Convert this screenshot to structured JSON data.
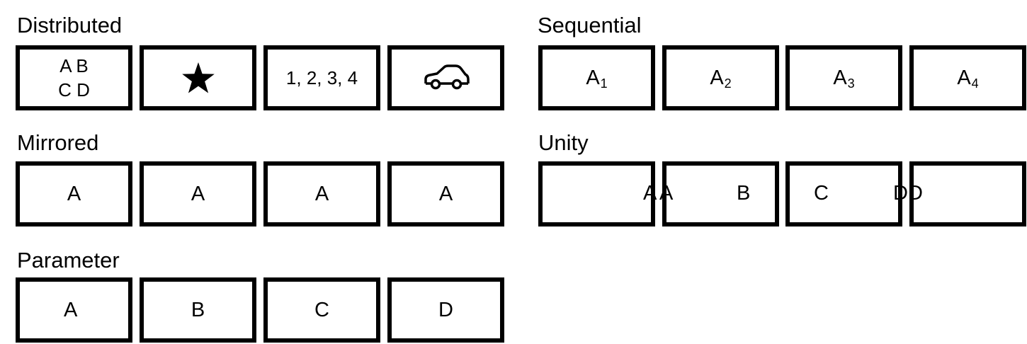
{
  "sections": {
    "distributed": {
      "title": "Distributed",
      "box1_line1": "A B",
      "box1_line2": "C D",
      "box2_icon": "star-icon",
      "box3_text": "1, 2, 3, 4",
      "box4_icon": "car-icon"
    },
    "sequential": {
      "title": "Sequential",
      "items": [
        {
          "base": "A",
          "sub": "1"
        },
        {
          "base": "A",
          "sub": "2"
        },
        {
          "base": "A",
          "sub": "3"
        },
        {
          "base": "A",
          "sub": "4"
        }
      ]
    },
    "mirrored": {
      "title": "Mirrored",
      "items": [
        "A",
        "A",
        "A",
        "A"
      ]
    },
    "unity": {
      "title": "Unity",
      "letters": [
        "A",
        "A",
        "B",
        "C",
        "D",
        "D"
      ]
    },
    "parameter": {
      "title": "Parameter",
      "items": [
        "A",
        "B",
        "C",
        "D"
      ]
    }
  }
}
